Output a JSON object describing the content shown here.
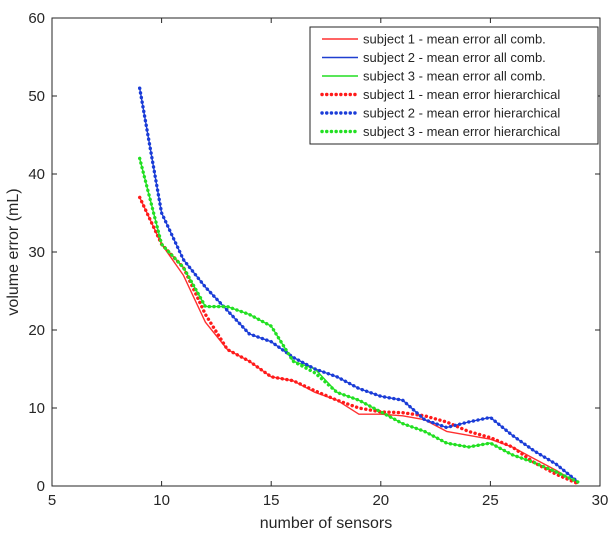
{
  "chart_data": {
    "type": "line",
    "title": "",
    "xlabel": "number of sensors",
    "ylabel": "volume error (mL)",
    "xlim": [
      5,
      30
    ],
    "ylim": [
      0,
      60
    ],
    "xticks": [
      5,
      10,
      15,
      20,
      25,
      30
    ],
    "yticks": [
      0,
      10,
      20,
      30,
      40,
      50,
      60
    ],
    "grid": false,
    "legend_position": "top-right",
    "series": [
      {
        "name": "subject 1 - mean error all comb.",
        "color": "#ff3030",
        "style": "solid",
        "x": [
          9,
          10,
          11,
          12,
          13,
          14,
          15,
          16,
          17,
          18,
          19,
          20,
          21,
          22,
          23,
          24,
          25,
          26,
          27,
          28,
          29
        ],
        "y": [
          37,
          31,
          27,
          21,
          17.5,
          16,
          14,
          13.5,
          12,
          11,
          9.2,
          9.2,
          9.0,
          8.5,
          7.0,
          6.5,
          6.0,
          5.0,
          3.5,
          2.0,
          0.3
        ]
      },
      {
        "name": "subject 2 - mean error all comb.",
        "color": "#1f3fd0",
        "style": "solid",
        "x": [
          9,
          10,
          11,
          12,
          13,
          14,
          15,
          16,
          17,
          18,
          19,
          20,
          21,
          22,
          23,
          24,
          25,
          26,
          27,
          28,
          29
        ],
        "y": [
          51,
          35,
          29,
          25.5,
          22.5,
          19.5,
          18.5,
          16.5,
          15,
          14,
          12.5,
          11.5,
          11,
          8.5,
          7.5,
          8.2,
          8.8,
          6.5,
          4.5,
          2.8,
          0.5
        ]
      },
      {
        "name": "subject 3 - mean error all comb.",
        "color": "#22dd22",
        "style": "solid",
        "x": [
          9,
          10,
          11,
          12,
          13,
          14,
          15,
          16,
          17,
          18,
          19,
          20,
          21,
          22,
          23,
          24,
          25,
          26,
          27,
          28,
          29
        ],
        "y": [
          42,
          31,
          28,
          23,
          23,
          22,
          20.5,
          16,
          15,
          12,
          11,
          9.5,
          8,
          7,
          5.5,
          5,
          5.5,
          4,
          3,
          1.8,
          0.5
        ]
      },
      {
        "name": "subject 1 - mean error hierarchical",
        "color": "#ff1a1a",
        "style": "dotted",
        "x": [
          9,
          10,
          11,
          12,
          13,
          14,
          15,
          16,
          17,
          18,
          19,
          20,
          21,
          22,
          23,
          24,
          25,
          26,
          27,
          28,
          29
        ],
        "y": [
          37,
          31,
          28,
          22,
          17.5,
          16,
          14,
          13.5,
          12.2,
          11,
          10,
          9.5,
          9.4,
          9.0,
          8.2,
          7.0,
          6.2,
          5.0,
          3.0,
          1.5,
          0.3
        ]
      },
      {
        "name": "subject 2 - mean error hierarchical",
        "color": "#1a3cd8",
        "style": "dotted",
        "x": [
          9,
          10,
          11,
          12,
          13,
          14,
          15,
          16,
          17,
          18,
          19,
          20,
          21,
          22,
          23,
          24,
          25,
          26,
          27,
          28,
          29
        ],
        "y": [
          51,
          35,
          29,
          25.5,
          22.5,
          19.5,
          18.5,
          16.5,
          15,
          14,
          12.5,
          11.5,
          11,
          8.5,
          7.5,
          8.2,
          8.8,
          6.5,
          4.5,
          2.8,
          0.5
        ]
      },
      {
        "name": "subject 3 - mean error hierarchical",
        "color": "#22e022",
        "style": "dotted",
        "x": [
          9,
          10,
          11,
          12,
          13,
          14,
          15,
          16,
          17,
          18,
          19,
          20,
          21,
          22,
          23,
          24,
          25,
          26,
          27,
          28,
          29
        ],
        "y": [
          42,
          31,
          28,
          23,
          23,
          22,
          20.5,
          16,
          14.5,
          12,
          11,
          9.5,
          8,
          7,
          5.5,
          5,
          5.5,
          4,
          3,
          1.8,
          0.5
        ]
      }
    ]
  }
}
